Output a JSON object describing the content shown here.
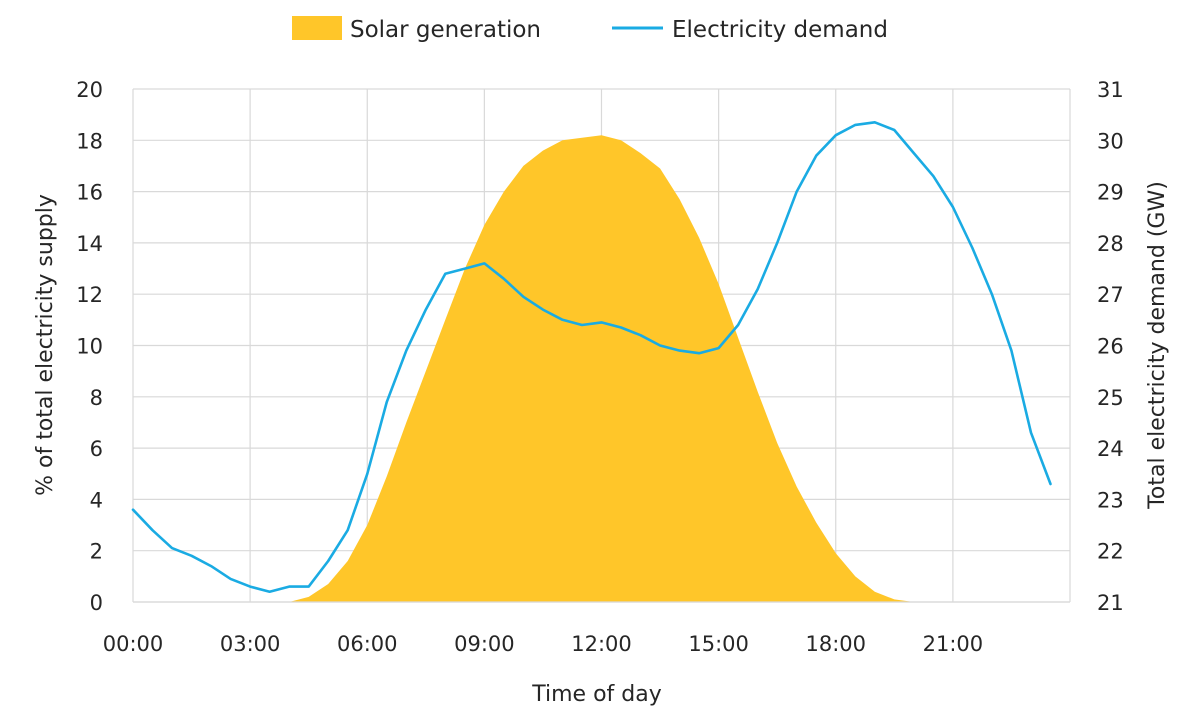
{
  "chart_data": {
    "type": "area+line",
    "title": "",
    "xlabel": "Time of day",
    "ylabel_left": "% of total electricity supply",
    "ylabel_right": "Total electricity demand (GW)",
    "x_tick_labels": [
      "00:00",
      "03:00",
      "06:00",
      "09:00",
      "12:00",
      "15:00",
      "18:00",
      "21:00"
    ],
    "x_range_hours": [
      0,
      24
    ],
    "y_left_range": [
      0,
      20
    ],
    "y_left_ticks": [
      "0",
      "2",
      "4",
      "6",
      "8",
      "10",
      "12",
      "14",
      "16",
      "18",
      "20"
    ],
    "y_right_range": [
      21,
      31
    ],
    "y_right_ticks": [
      "21",
      "22",
      "23",
      "24",
      "25",
      "26",
      "27",
      "28",
      "29",
      "30",
      "31"
    ],
    "grid": true,
    "legend_position": "top-center",
    "colors": {
      "solar": "#FFC629",
      "demand": "#1AABE3"
    },
    "series": [
      {
        "name": "Solar generation",
        "type": "area",
        "axis": "left",
        "x_hours": [
          4.0,
          4.5,
          5.0,
          5.5,
          6.0,
          6.5,
          7.0,
          7.5,
          8.0,
          8.5,
          9.0,
          9.5,
          10.0,
          10.5,
          11.0,
          11.5,
          12.0,
          12.5,
          13.0,
          13.5,
          14.0,
          14.5,
          15.0,
          15.5,
          16.0,
          16.5,
          17.0,
          17.5,
          18.0,
          18.5,
          19.0,
          19.5,
          20.0
        ],
        "values": [
          0.0,
          0.2,
          0.7,
          1.6,
          3.0,
          4.9,
          7.0,
          9.0,
          11.0,
          13.0,
          14.7,
          16.0,
          17.0,
          17.6,
          18.0,
          18.1,
          18.2,
          18.0,
          17.5,
          16.9,
          15.7,
          14.2,
          12.4,
          10.3,
          8.2,
          6.2,
          4.5,
          3.1,
          1.9,
          1.0,
          0.4,
          0.1,
          0.0
        ]
      },
      {
        "name": "Electricity demand",
        "type": "line",
        "axis": "right",
        "x_hours": [
          0.0,
          0.5,
          1.0,
          1.5,
          2.0,
          2.5,
          3.0,
          3.5,
          4.0,
          4.5,
          5.0,
          5.5,
          6.0,
          6.5,
          7.0,
          7.5,
          8.0,
          8.5,
          9.0,
          9.5,
          10.0,
          10.5,
          11.0,
          11.5,
          12.0,
          12.5,
          13.0,
          13.5,
          14.0,
          14.5,
          15.0,
          15.5,
          16.0,
          16.5,
          17.0,
          17.5,
          18.0,
          18.5,
          19.0,
          19.5,
          20.0,
          20.5,
          21.0,
          21.5,
          22.0,
          22.5,
          23.0,
          23.5
        ],
        "values": [
          22.8,
          22.4,
          22.05,
          21.9,
          21.7,
          21.45,
          21.3,
          21.2,
          21.3,
          21.3,
          21.8,
          22.4,
          23.5,
          24.9,
          25.9,
          26.7,
          27.4,
          27.5,
          27.6,
          27.3,
          26.95,
          26.7,
          26.5,
          26.4,
          26.45,
          26.35,
          26.2,
          26.0,
          25.9,
          25.85,
          25.95,
          26.4,
          27.1,
          28.0,
          29.0,
          29.7,
          30.1,
          30.3,
          30.35,
          30.2,
          29.75,
          29.3,
          28.7,
          27.9,
          27.0,
          25.9,
          24.3,
          23.3
        ]
      }
    ]
  }
}
